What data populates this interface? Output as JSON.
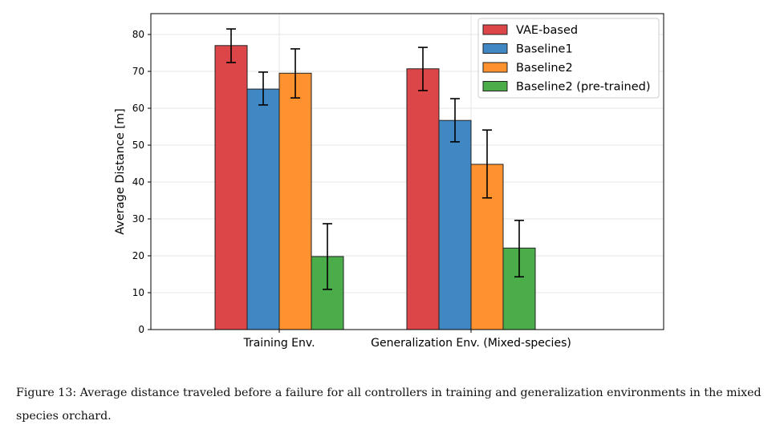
{
  "chart_data": {
    "type": "bar",
    "title": "",
    "xlabel": "",
    "ylabel": "Average Distance [m]",
    "ylim": [
      0,
      85.7
    ],
    "yticks": [
      0,
      10,
      20,
      30,
      40,
      50,
      60,
      70,
      80
    ],
    "grid": true,
    "legend_position": "top-right",
    "categories": [
      "Training Env.",
      "Generalization Env. (Mixed-species)"
    ],
    "series": [
      {
        "name": "VAE-based",
        "color": "#dc4649",
        "values": [
          77.0,
          70.7
        ],
        "err_low": [
          72.4,
          64.8
        ],
        "err_high": [
          81.5,
          76.5
        ]
      },
      {
        "name": "Baseline1",
        "color": "#3f88c4",
        "values": [
          65.2,
          56.7
        ],
        "err_low": [
          60.9,
          50.9
        ],
        "err_high": [
          69.8,
          62.6
        ]
      },
      {
        "name": "Baseline2",
        "color": "#ff912e",
        "values": [
          69.5,
          44.8
        ],
        "err_low": [
          62.8,
          35.7
        ],
        "err_high": [
          76.1,
          54.1
        ]
      },
      {
        "name": "Baseline2 (pre-trained)",
        "color": "#4aad4a",
        "values": [
          19.8,
          22.1
        ],
        "err_low": [
          10.9,
          14.3
        ],
        "err_high": [
          28.7,
          29.6
        ]
      }
    ]
  },
  "caption": "Figure 13: Average distance traveled before a failure for all controllers in training and generalization environments in the mixed species orchard."
}
